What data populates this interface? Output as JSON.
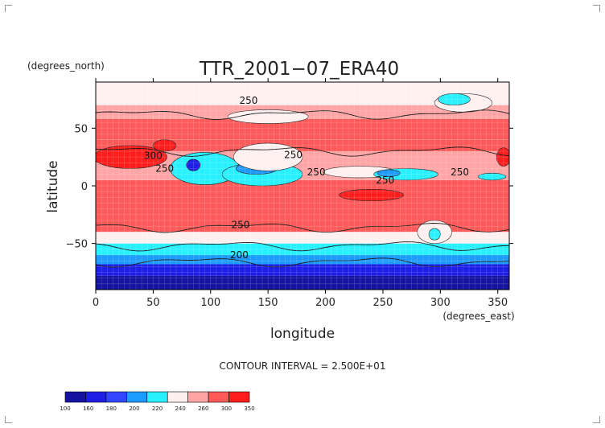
{
  "chart_data": {
    "type": "heatmap",
    "title": "TTR_2001−07_ERA40",
    "xlabel": "longitude",
    "ylabel": "latitude",
    "x_units": "(degrees_east)",
    "y_units": "(degrees_north)",
    "xlim": [
      0,
      360
    ],
    "ylim": [
      -90,
      90
    ],
    "x_ticks": [
      0,
      50,
      100,
      150,
      200,
      250,
      300,
      350
    ],
    "y_ticks": [
      -50,
      0,
      50
    ],
    "x_tick_labels": [
      "0",
      "50",
      "100",
      "150",
      "200",
      "250",
      "300",
      "350"
    ],
    "y_tick_labels": [
      "−50",
      "0",
      "50"
    ],
    "contour_interval_text": "CONTOUR INTERVAL = 2.500E+01",
    "contour_labels": [
      {
        "text": "250",
        "lon": 133,
        "lat": 74
      },
      {
        "text": "250",
        "lon": 172,
        "lat": 27
      },
      {
        "text": "250",
        "lon": 60,
        "lat": 15
      },
      {
        "text": "250",
        "lon": 192,
        "lat": 12
      },
      {
        "text": "250",
        "lon": 252,
        "lat": 5
      },
      {
        "text": "250",
        "lon": 317,
        "lat": 12
      },
      {
        "text": "250",
        "lon": 126,
        "lat": -34
      },
      {
        "text": "200",
        "lon": 125,
        "lat": -60
      },
      {
        "text": "300",
        "lon": 50,
        "lat": 26
      }
    ],
    "legend_levels": [
      "100",
      "160",
      "180",
      "200",
      "220",
      "240",
      "260",
      "300",
      "350"
    ],
    "legend_colors": [
      "#1414a0",
      "#1e1ee6",
      "#3246ff",
      "#1e9bff",
      "#28f0ff",
      "#fff0f0",
      "#ffa5a5",
      "#ff5a5a",
      "#ff1e1e"
    ],
    "zonal_bands": [
      {
        "lat_from": 90,
        "lat_to": 70,
        "color": "#fff0f0"
      },
      {
        "lat_from": 70,
        "lat_to": 58,
        "color": "#ffa5a5"
      },
      {
        "lat_from": 58,
        "lat_to": 40,
        "color": "#ff5a5a"
      },
      {
        "lat_from": 40,
        "lat_to": 30,
        "color": "#ff5a5a"
      },
      {
        "lat_from": 30,
        "lat_to": 5,
        "color": "#ffa5a5"
      },
      {
        "lat_from": 5,
        "lat_to": -40,
        "color": "#ff5a5a"
      },
      {
        "lat_from": -40,
        "lat_to": -50,
        "color": "#fff0f0"
      },
      {
        "lat_from": -50,
        "lat_to": -60,
        "color": "#28f0ff"
      },
      {
        "lat_from": -60,
        "lat_to": -68,
        "color": "#1e9bff"
      },
      {
        "lat_from": -68,
        "lat_to": -78,
        "color": "#1e1ee6"
      },
      {
        "lat_from": -78,
        "lat_to": -90,
        "color": "#1414a0"
      }
    ],
    "features": [
      {
        "kind": "blob",
        "lon": 30,
        "lat": 25,
        "rx": 32,
        "ry": 10,
        "color": "#ff1e1e"
      },
      {
        "kind": "blob",
        "lon": 60,
        "lat": 35,
        "rx": 10,
        "ry": 5,
        "color": "#ff1e1e"
      },
      {
        "kind": "blob",
        "lon": 240,
        "lat": -8,
        "rx": 28,
        "ry": 5,
        "color": "#ff1e1e"
      },
      {
        "kind": "blob",
        "lon": 355,
        "lat": 25,
        "rx": 6,
        "ry": 8,
        "color": "#ff1e1e"
      },
      {
        "kind": "blob",
        "lon": 150,
        "lat": 60,
        "rx": 35,
        "ry": 6,
        "color": "#fff0f0"
      },
      {
        "kind": "blob",
        "lon": 320,
        "lat": 72,
        "rx": 25,
        "ry": 8,
        "color": "#fff0f0"
      },
      {
        "kind": "blob",
        "lon": 312,
        "lat": 75,
        "rx": 14,
        "ry": 5,
        "color": "#28f0ff"
      },
      {
        "kind": "blob",
        "lon": 95,
        "lat": 15,
        "rx": 30,
        "ry": 14,
        "color": "#28f0ff"
      },
      {
        "kind": "blob",
        "lon": 85,
        "lat": 18,
        "rx": 6,
        "ry": 5,
        "color": "#1e1ee6"
      },
      {
        "kind": "blob",
        "lon": 145,
        "lat": 10,
        "rx": 35,
        "ry": 10,
        "color": "#28f0ff"
      },
      {
        "kind": "blob",
        "lon": 140,
        "lat": 15,
        "rx": 18,
        "ry": 5,
        "color": "#1e9bff"
      },
      {
        "kind": "blob",
        "lon": 230,
        "lat": 12,
        "rx": 32,
        "ry": 5,
        "color": "#fff0f0"
      },
      {
        "kind": "blob",
        "lon": 270,
        "lat": 10,
        "rx": 28,
        "ry": 5,
        "color": "#28f0ff"
      },
      {
        "kind": "blob",
        "lon": 255,
        "lat": 11,
        "rx": 10,
        "ry": 3,
        "color": "#1e9bff"
      },
      {
        "kind": "blob",
        "lon": 345,
        "lat": 8,
        "rx": 12,
        "ry": 3,
        "color": "#28f0ff"
      },
      {
        "kind": "blob",
        "lon": 150,
        "lat": 25,
        "rx": 30,
        "ry": 12,
        "color": "#fff0f0"
      },
      {
        "kind": "blob",
        "lon": 295,
        "lat": -40,
        "rx": 15,
        "ry": 10,
        "color": "#fff0f0"
      },
      {
        "kind": "blob",
        "lon": 295,
        "lat": -42,
        "rx": 5,
        "ry": 5,
        "color": "#28f0ff"
      }
    ]
  }
}
